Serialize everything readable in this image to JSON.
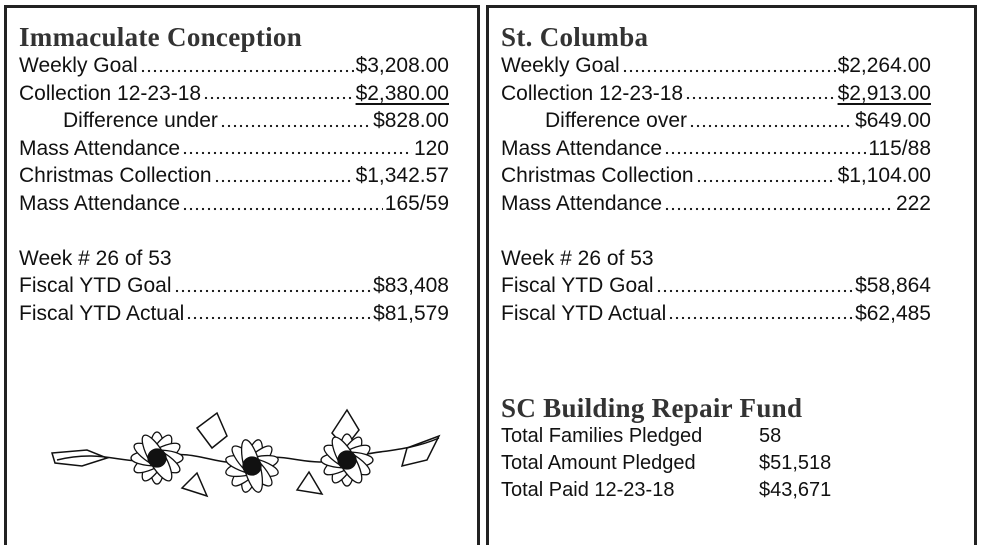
{
  "left": {
    "title": "Immaculate Conception",
    "rows": [
      {
        "label": "Weekly Goal",
        "value": "$3,208.00"
      },
      {
        "label": "Collection 12-23-18",
        "value": "$2,380.00"
      },
      {
        "label": "Difference under",
        "value": "$828.00"
      },
      {
        "label": "Mass Attendance",
        "value": "120"
      },
      {
        "label": "Christmas Collection",
        "value": "$1,342.57"
      },
      {
        "label": "Mass Attendance",
        "value": "165/59"
      }
    ],
    "week": "Week # 26 of 53",
    "fiscal": [
      {
        "label": "Fiscal YTD Goal",
        "value": "$83,408"
      },
      {
        "label": "Fiscal YTD Actual",
        "value": "$81,579"
      }
    ]
  },
  "right": {
    "title": "St. Columba",
    "rows": [
      {
        "label": "Weekly Goal",
        "value": "$2,264.00"
      },
      {
        "label": "Collection 12-23-18",
        "value": "$2,913.00"
      },
      {
        "label": "Difference over",
        "value": "$649.00"
      },
      {
        "label": "Mass Attendance",
        "value": "115/88"
      },
      {
        "label": "Christmas Collection",
        "value": "$1,104.00"
      },
      {
        "label": "Mass Attendance",
        "value": "222"
      }
    ],
    "week": "Week # 26 of 53",
    "fiscal": [
      {
        "label": "Fiscal YTD Goal",
        "value": "$58,864"
      },
      {
        "label": "Fiscal YTD Actual",
        "value": "$62,485"
      }
    ],
    "fund": {
      "title": "SC Building Repair Fund",
      "rows": [
        {
          "label": "Total Families Pledged",
          "value": "58"
        },
        {
          "label": "Total Amount Pledged",
          "value": "$51,518"
        },
        {
          "label": "Total Paid 12-23-18",
          "value": "$43,671"
        }
      ]
    }
  }
}
